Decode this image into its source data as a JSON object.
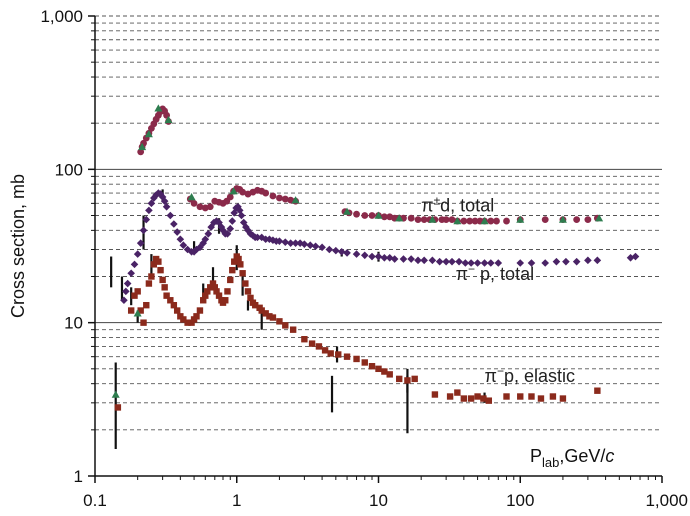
{
  "chart_data": {
    "type": "scatter",
    "xscale": "log",
    "yscale": "log",
    "xlim": [
      0.1,
      1000
    ],
    "ylim": [
      1,
      1000
    ],
    "grid": "horizontal dashed minor, solid major",
    "ylabel": "Cross section, mb",
    "xlabel_main": "P",
    "xlabel_sub": "lab",
    "xlabel_units": ",GeV/",
    "xlabel_italic": "c",
    "x_tick_labels": [
      "0.1",
      "1",
      "10",
      "100",
      "1,000"
    ],
    "y_tick_labels": [
      "1",
      "10",
      "100",
      "1,000"
    ],
    "colors": {
      "pid_total": "#8b2a4a",
      "pip_total": "#4a2366",
      "pip_elastic": "#8b2a1c",
      "green_marker": "#2e7d4f",
      "error_bar": "#111111",
      "grid_dashed": "#555555"
    },
    "series": [
      {
        "name": "π±d, total",
        "marker": "circle",
        "points": [
          [
            0.21,
            130
          ],
          [
            0.215,
            140
          ],
          [
            0.22,
            148
          ],
          [
            0.23,
            160
          ],
          [
            0.24,
            172
          ],
          [
            0.25,
            185
          ],
          [
            0.26,
            198
          ],
          [
            0.27,
            212
          ],
          [
            0.28,
            225
          ],
          [
            0.29,
            238
          ],
          [
            0.3,
            248
          ],
          [
            0.31,
            240
          ],
          [
            0.32,
            225
          ],
          [
            0.33,
            205
          ],
          [
            0.47,
            64
          ],
          [
            0.5,
            60
          ],
          [
            0.55,
            57
          ],
          [
            0.6,
            56
          ],
          [
            0.65,
            57
          ],
          [
            0.7,
            62
          ],
          [
            0.75,
            61
          ],
          [
            0.8,
            60
          ],
          [
            0.85,
            62
          ],
          [
            0.9,
            66
          ],
          [
            0.95,
            72
          ],
          [
            1.0,
            75
          ],
          [
            1.05,
            74
          ],
          [
            1.1,
            71
          ],
          [
            1.2,
            69
          ],
          [
            1.3,
            71
          ],
          [
            1.4,
            73
          ],
          [
            1.5,
            72
          ],
          [
            1.6,
            70
          ],
          [
            1.8,
            67
          ],
          [
            2.0,
            65
          ],
          [
            2.2,
            64
          ],
          [
            2.4,
            63
          ],
          [
            2.6,
            62
          ],
          [
            5.8,
            53
          ],
          [
            6.2,
            52
          ],
          [
            7,
            51
          ],
          [
            8,
            50
          ],
          [
            9,
            50
          ],
          [
            10,
            50
          ],
          [
            11,
            49
          ],
          [
            12,
            49
          ],
          [
            13,
            48
          ],
          [
            14,
            48
          ],
          [
            15,
            48
          ],
          [
            17,
            48
          ],
          [
            19,
            47
          ],
          [
            21,
            47
          ],
          [
            23,
            47
          ],
          [
            25,
            47
          ],
          [
            28,
            47
          ],
          [
            30,
            47
          ],
          [
            33,
            47
          ],
          [
            36,
            46
          ],
          [
            40,
            46
          ],
          [
            44,
            46
          ],
          [
            48,
            46
          ],
          [
            52,
            46
          ],
          [
            56,
            46
          ],
          [
            62,
            46
          ],
          [
            68,
            46
          ],
          [
            80,
            46
          ],
          [
            100,
            47
          ],
          [
            150,
            47
          ],
          [
            200,
            47
          ],
          [
            250,
            47
          ],
          [
            300,
            47
          ],
          [
            350,
            48
          ]
        ]
      },
      {
        "name": "π⁻p, total",
        "marker": "diamond",
        "points": [
          [
            0.16,
            14
          ],
          [
            0.165,
            16
          ],
          [
            0.17,
            18
          ],
          [
            0.18,
            21
          ],
          [
            0.19,
            24
          ],
          [
            0.2,
            28
          ],
          [
            0.21,
            33
          ],
          [
            0.22,
            40
          ],
          [
            0.23,
            47
          ],
          [
            0.24,
            54
          ],
          [
            0.25,
            60
          ],
          [
            0.26,
            65
          ],
          [
            0.27,
            68
          ],
          [
            0.28,
            70
          ],
          [
            0.29,
            69
          ],
          [
            0.3,
            66
          ],
          [
            0.31,
            62
          ],
          [
            0.32,
            57
          ],
          [
            0.34,
            50
          ],
          [
            0.36,
            44
          ],
          [
            0.38,
            39
          ],
          [
            0.4,
            35
          ],
          [
            0.42,
            32
          ],
          [
            0.45,
            30
          ],
          [
            0.48,
            29
          ],
          [
            0.5,
            29
          ],
          [
            0.52,
            30
          ],
          [
            0.55,
            31
          ],
          [
            0.58,
            33
          ],
          [
            0.6,
            35
          ],
          [
            0.63,
            38
          ],
          [
            0.66,
            42
          ],
          [
            0.69,
            45
          ],
          [
            0.72,
            46
          ],
          [
            0.75,
            45
          ],
          [
            0.78,
            42
          ],
          [
            0.8,
            40
          ],
          [
            0.83,
            38
          ],
          [
            0.86,
            38
          ],
          [
            0.9,
            41
          ],
          [
            0.93,
            46
          ],
          [
            0.96,
            52
          ],
          [
            0.99,
            56
          ],
          [
            1.02,
            57
          ],
          [
            1.05,
            54
          ],
          [
            1.08,
            50
          ],
          [
            1.12,
            45
          ],
          [
            1.16,
            42
          ],
          [
            1.2,
            40
          ],
          [
            1.25,
            38
          ],
          [
            1.3,
            37
          ],
          [
            1.35,
            36
          ],
          [
            1.4,
            36
          ],
          [
            1.5,
            36
          ],
          [
            1.6,
            35
          ],
          [
            1.7,
            35
          ],
          [
            1.8,
            34.5
          ],
          [
            1.9,
            34
          ],
          [
            2.0,
            34
          ],
          [
            2.2,
            33.5
          ],
          [
            2.4,
            33
          ],
          [
            2.6,
            33
          ],
          [
            2.8,
            33
          ],
          [
            3,
            32.5
          ],
          [
            3.3,
            32
          ],
          [
            3.6,
            31.5
          ],
          [
            4,
            31
          ],
          [
            4.5,
            30
          ],
          [
            5,
            29.5
          ],
          [
            5.5,
            29
          ],
          [
            6,
            28.5
          ],
          [
            7,
            28
          ],
          [
            8,
            27.5
          ],
          [
            9,
            27
          ],
          [
            10,
            27
          ],
          [
            11,
            26.5
          ],
          [
            12,
            26.5
          ],
          [
            13,
            26
          ],
          [
            15,
            26
          ],
          [
            17,
            26
          ],
          [
            19,
            25.5
          ],
          [
            21,
            25.5
          ],
          [
            24,
            25.5
          ],
          [
            27,
            25
          ],
          [
            30,
            25
          ],
          [
            33,
            25
          ],
          [
            37,
            25
          ],
          [
            41,
            24.5
          ],
          [
            45,
            24.5
          ],
          [
            50,
            24.5
          ],
          [
            56,
            24.5
          ],
          [
            62,
            24.5
          ],
          [
            70,
            24.5
          ],
          [
            100,
            24.5
          ],
          [
            120,
            24.5
          ],
          [
            150,
            24.5
          ],
          [
            180,
            25
          ],
          [
            210,
            25
          ],
          [
            250,
            25
          ],
          [
            300,
            25.5
          ],
          [
            350,
            25.5
          ],
          [
            600,
            26.5
          ],
          [
            650,
            27
          ]
        ]
      },
      {
        "name": "π⁻p, elastic",
        "marker": "square",
        "points": [
          [
            0.145,
            2.8
          ],
          [
            0.18,
            12
          ],
          [
            0.19,
            15
          ],
          [
            0.2,
            16
          ],
          [
            0.21,
            12
          ],
          [
            0.22,
            10
          ],
          [
            0.23,
            13
          ],
          [
            0.24,
            18
          ],
          [
            0.25,
            20
          ],
          [
            0.26,
            24
          ],
          [
            0.27,
            26
          ],
          [
            0.28,
            25
          ],
          [
            0.29,
            22
          ],
          [
            0.3,
            19
          ],
          [
            0.31,
            17
          ],
          [
            0.32,
            15
          ],
          [
            0.34,
            14
          ],
          [
            0.36,
            13
          ],
          [
            0.38,
            12
          ],
          [
            0.4,
            11
          ],
          [
            0.42,
            10.5
          ],
          [
            0.45,
            10
          ],
          [
            0.48,
            10
          ],
          [
            0.5,
            10.5
          ],
          [
            0.52,
            11
          ],
          [
            0.55,
            12
          ],
          [
            0.58,
            14
          ],
          [
            0.6,
            15
          ],
          [
            0.62,
            16
          ],
          [
            0.65,
            17
          ],
          [
            0.68,
            18
          ],
          [
            0.7,
            17
          ],
          [
            0.72,
            16
          ],
          [
            0.75,
            15
          ],
          [
            0.78,
            14
          ],
          [
            0.8,
            13.5
          ],
          [
            0.83,
            14
          ],
          [
            0.86,
            16
          ],
          [
            0.9,
            19
          ],
          [
            0.93,
            22
          ],
          [
            0.96,
            25
          ],
          [
            1.0,
            27
          ],
          [
            1.03,
            26
          ],
          [
            1.06,
            24
          ],
          [
            1.1,
            21
          ],
          [
            1.15,
            18
          ],
          [
            1.2,
            16
          ],
          [
            1.25,
            14.5
          ],
          [
            1.3,
            13.5
          ],
          [
            1.35,
            13
          ],
          [
            1.45,
            12.5
          ],
          [
            1.5,
            12
          ],
          [
            1.6,
            11.5
          ],
          [
            1.7,
            11
          ],
          [
            1.8,
            10.8
          ],
          [
            2.0,
            10.2
          ],
          [
            2.2,
            9.6
          ],
          [
            2.5,
            9
          ],
          [
            3.0,
            7.8
          ],
          [
            3.4,
            7.3
          ],
          [
            3.8,
            7
          ],
          [
            4.2,
            6.6
          ],
          [
            4.6,
            6.3
          ],
          [
            5.2,
            6.2
          ],
          [
            6,
            6
          ],
          [
            7,
            5.8
          ],
          [
            8,
            5.5
          ],
          [
            9,
            5.2
          ],
          [
            10,
            5
          ],
          [
            11,
            4.8
          ],
          [
            12,
            4.6
          ],
          [
            14,
            4.3
          ],
          [
            16,
            4.2
          ],
          [
            18,
            4.3
          ],
          [
            25,
            3.4
          ],
          [
            32,
            3.3
          ],
          [
            36,
            3.5
          ],
          [
            40,
            3.2
          ],
          [
            45,
            3.2
          ],
          [
            50,
            3.3
          ],
          [
            55,
            3.2
          ],
          [
            60,
            3.1
          ],
          [
            80,
            3.3
          ],
          [
            100,
            3.3
          ],
          [
            120,
            3.3
          ],
          [
            140,
            3.2
          ],
          [
            170,
            3.3
          ],
          [
            200,
            3.2
          ],
          [
            350,
            3.6
          ]
        ]
      },
      {
        "name": "",
        "marker": "triangle",
        "points": [
          [
            0.14,
            3.4
          ],
          [
            0.2,
            11.5
          ],
          [
            0.215,
            140
          ],
          [
            0.24,
            170
          ],
          [
            0.28,
            250
          ],
          [
            0.33,
            210
          ],
          [
            0.48,
            66
          ],
          [
            0.95,
            72
          ],
          [
            2.6,
            63
          ],
          [
            6,
            53
          ],
          [
            10,
            50
          ],
          [
            14,
            48
          ],
          [
            24,
            47
          ],
          [
            36,
            46
          ],
          [
            100,
            47
          ],
          [
            200,
            47
          ],
          [
            360,
            48
          ],
          [
            56,
            46
          ]
        ]
      }
    ],
    "error_bars": [
      [
        0.13,
        17,
        27
      ],
      [
        0.14,
        1.5,
        5.5
      ],
      [
        0.155,
        14,
        20
      ],
      [
        0.18,
        13,
        17
      ],
      [
        0.2,
        10,
        12
      ],
      [
        0.22,
        30,
        50
      ],
      [
        0.25,
        20,
        28
      ],
      [
        0.3,
        62,
        74
      ],
      [
        0.5,
        28,
        34
      ],
      [
        0.58,
        14,
        18
      ],
      [
        0.68,
        17,
        23
      ],
      [
        0.75,
        38,
        48
      ],
      [
        1.0,
        22,
        32
      ],
      [
        1.1,
        15,
        20
      ],
      [
        1.2,
        12,
        14
      ],
      [
        1.5,
        9,
        12
      ],
      [
        4.7,
        2.6,
        4.5
      ],
      [
        5.1,
        5.5,
        7
      ],
      [
        5.5,
        27,
        30
      ],
      [
        10,
        25,
        29
      ],
      [
        16,
        1.9,
        5
      ],
      [
        16,
        3.5,
        4.5
      ],
      [
        56,
        3,
        3.5
      ]
    ],
    "annotations": [
      {
        "main": "π",
        "sup": "±",
        "rest": "d, total",
        "x": 20,
        "y": 53
      },
      {
        "main": "π",
        "sup": "−",
        "rest": " p, total",
        "x": 35,
        "y": 19
      },
      {
        "main": "π",
        "sup": "−",
        "rest": "p, elastic",
        "x": 56,
        "y": 4.1
      }
    ]
  }
}
